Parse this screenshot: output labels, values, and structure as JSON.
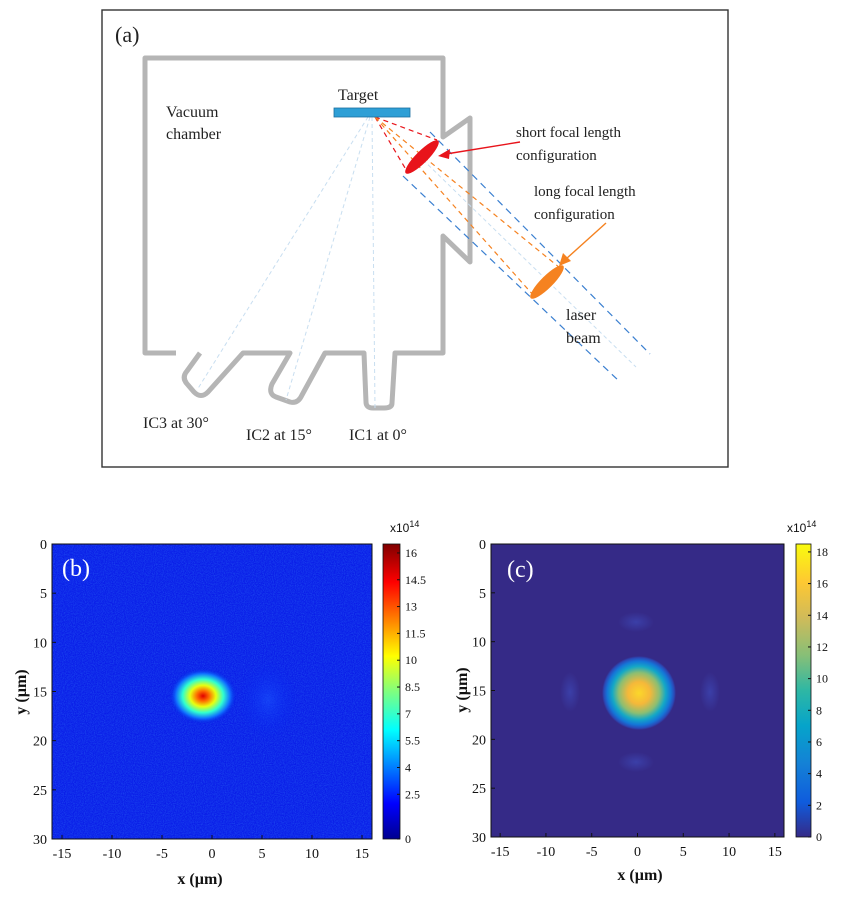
{
  "panel_a": {
    "label": "(a)",
    "chamber_label_line1": "Vacuum",
    "chamber_label_line2": "chamber",
    "target_label": "Target",
    "short_focal_line1": "short  focal length",
    "short_focal_line2": "configuration",
    "long_focal_line1": "long  focal length",
    "long_focal_line2": "configuration",
    "laser_line1": "laser",
    "laser_line2": "beam",
    "ic3_label": "IC3 at 30°",
    "ic2_label": "IC2 at 15°",
    "ic1_label": "IC1 at 0°",
    "colors": {
      "chamber": "#b5b5b5",
      "target": "#2e9fd6",
      "short_lens": "#e8141b",
      "long_lens": "#f58220",
      "beam_edge": "#3a7fd0"
    }
  },
  "panel_b": {
    "label": "(b)",
    "xlabel": "x (µm)",
    "ylabel": "y (µm)",
    "x_ticks": [
      "-15",
      "-10",
      "-5",
      "0",
      "5",
      "10",
      "15"
    ],
    "y_ticks": [
      "0",
      "5",
      "10",
      "15",
      "20",
      "25",
      "30"
    ],
    "colorbar_exponent": "x10",
    "colorbar_power": "14",
    "colorbar_ticks": [
      "16",
      "14.5",
      "13",
      "11.5",
      "10",
      "8.5",
      "7",
      "5.5",
      "4",
      "2.5",
      "0"
    ]
  },
  "panel_c": {
    "label": "(c)",
    "xlabel": "x (µm)",
    "ylabel": "y (µm)",
    "x_ticks": [
      "-15",
      "-10",
      "-5",
      "0",
      "5",
      "10",
      "15"
    ],
    "y_ticks": [
      "0",
      "5",
      "10",
      "15",
      "20",
      "25",
      "30"
    ],
    "colorbar_exponent": "x10",
    "colorbar_power": "14",
    "colorbar_ticks": [
      "18",
      "16",
      "14",
      "12",
      "10",
      "8",
      "6",
      "4",
      "2",
      "0"
    ]
  },
  "chart_data": [
    {
      "type": "heatmap",
      "title": "(b)",
      "xlabel": "x (µm)",
      "ylabel": "y (µm)",
      "xlim": [
        -16,
        16
      ],
      "ylim": [
        30,
        0
      ],
      "colormap": "jet",
      "colorbar_range": [
        0,
        16.5
      ],
      "colorbar_scale": "x10^14",
      "peak_center": [
        0,
        15
      ],
      "peak_value": 16
    },
    {
      "type": "heatmap",
      "title": "(c)",
      "xlabel": "x (µm)",
      "ylabel": "y (µm)",
      "xlim": [
        -16,
        16
      ],
      "ylim": [
        30,
        0
      ],
      "colormap": "parula",
      "colorbar_range": [
        0,
        18.5
      ],
      "colorbar_scale": "x10^14",
      "peak_center": [
        0,
        15
      ],
      "peak_value": 18
    }
  ]
}
